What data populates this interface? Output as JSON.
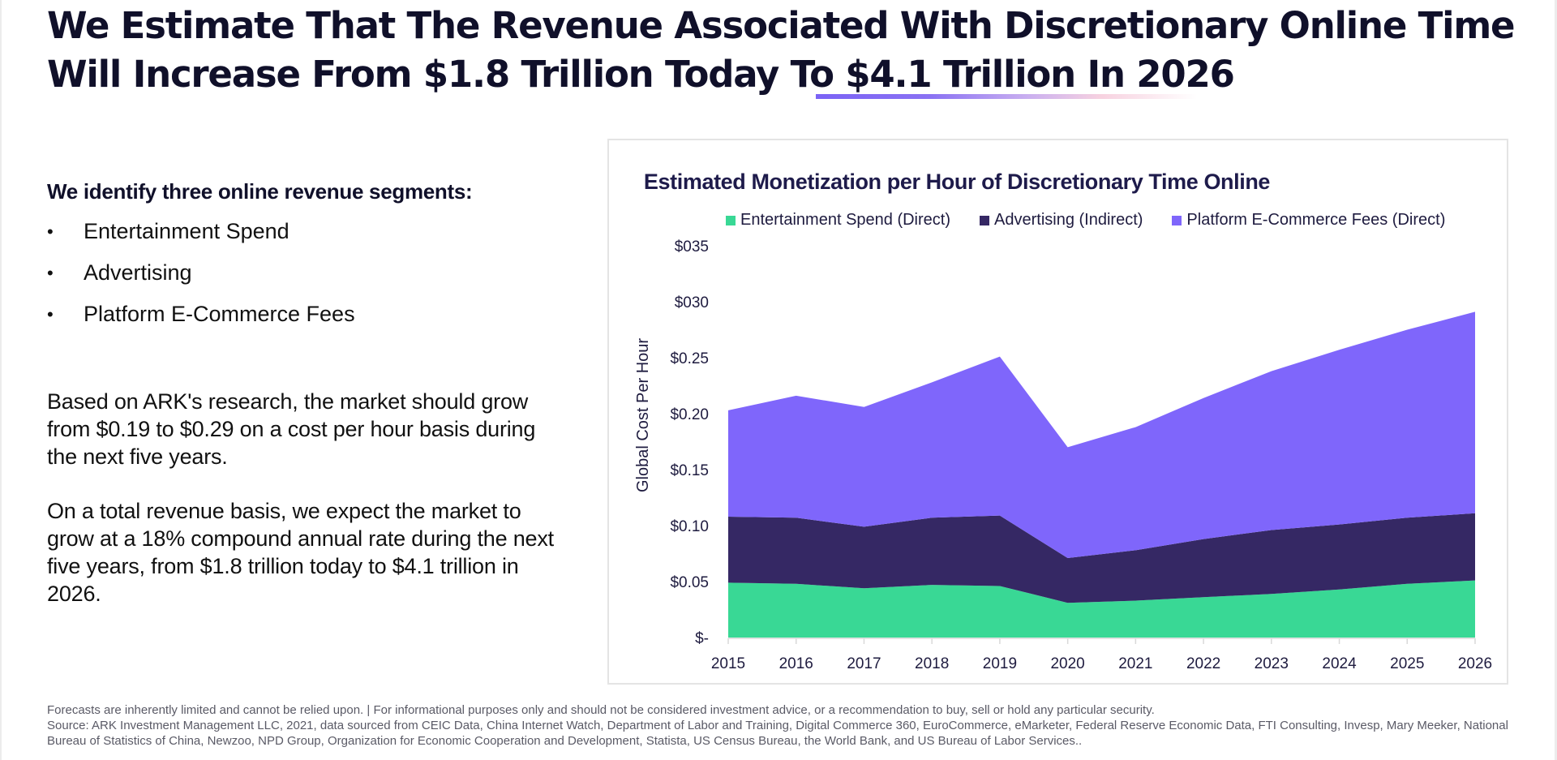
{
  "headline": {
    "line1": "We Estimate That The Revenue Associated With Discretionary Online Time",
    "line2": "Will Increase From $1.8 Trillion Today To $4.1 Trillion In 2026"
  },
  "segments": {
    "heading": "We identify three online revenue segments:",
    "bullet_glyph": "•",
    "items": [
      "Entertainment Spend",
      "Advertising",
      "Platform E-Commerce Fees"
    ]
  },
  "paragraphs": [
    "Based on ARK's research, the market should grow from $0.19 to $0.29 on a cost per hour basis during the next five years.",
    "On a total revenue basis, we expect the market to grow at a 18% compound annual rate during the next five years, from $1.8 trillion today to $4.1 trillion in 2026."
  ],
  "colors": {
    "entertainment": "#39d895",
    "advertising": "#352864",
    "ecommerce": "#7f66fb",
    "text_dark": "#10102a",
    "accent": "#7b63f5"
  },
  "chart_data": {
    "type": "area",
    "stacked": true,
    "title": "Estimated Monetization per Hour of Discretionary Time Online",
    "xlabel": "",
    "ylabel": "Global Cost Per Hour",
    "x": [
      "2015",
      "2016",
      "2017",
      "2018",
      "2019",
      "2020",
      "2021",
      "2022",
      "2023",
      "2024",
      "2025",
      "2026"
    ],
    "ylim": [
      0,
      0.35
    ],
    "yticks": [
      0,
      0.05,
      0.1,
      0.15,
      0.2,
      0.25,
      0.3,
      0.35
    ],
    "ytick_labels": [
      "$-",
      "$0.05",
      "$0.10",
      "$0.15",
      "$0.20",
      "$0.25",
      "$030",
      "$035"
    ],
    "grid": false,
    "legend_position": "top",
    "series": [
      {
        "name": "Entertainment Spend (Direct)",
        "color": "#39d895",
        "values": [
          0.049,
          0.048,
          0.044,
          0.047,
          0.046,
          0.031,
          0.033,
          0.036,
          0.039,
          0.043,
          0.048,
          0.051
        ]
      },
      {
        "name": "Advertising (Indirect)",
        "color": "#352864",
        "values": [
          0.059,
          0.059,
          0.055,
          0.06,
          0.063,
          0.04,
          0.045,
          0.052,
          0.057,
          0.058,
          0.059,
          0.06
        ]
      },
      {
        "name": "Platform E-Commerce Fees (Direct)",
        "color": "#7f66fb",
        "values": [
          0.095,
          0.109,
          0.107,
          0.121,
          0.142,
          0.099,
          0.11,
          0.126,
          0.142,
          0.156,
          0.168,
          0.18
        ]
      }
    ]
  },
  "footer": {
    "disclaimer": "Forecasts are inherently limited and cannot be relied upon. | For informational purposes only and should not be considered investment advice, or a recommendation to buy, sell or hold any particular security.",
    "source": "Source: ARK Investment Management LLC,  2021, data sourced from CEIC Data, China Internet Watch, Department of Labor and Training, Digital Commerce 360, EuroCommerce, eMarketer, Federal Reserve Economic Data, FTI Consulting, Invesp, Mary Meeker, National Bureau of Statistics of China, Newzoo, NPD Group, Organization for Economic Cooperation and Development, Statista, US Census Bureau, the World Bank, and US Bureau of Labor Services.."
  }
}
